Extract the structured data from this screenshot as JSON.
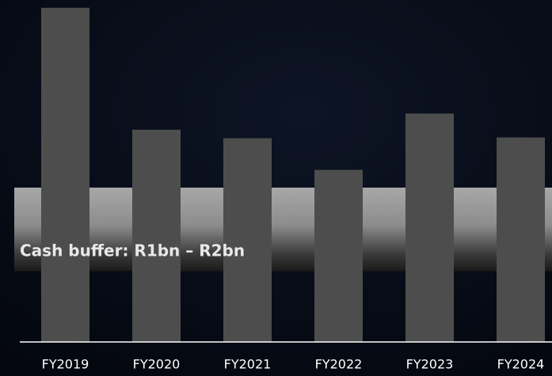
{
  "chart_data": {
    "type": "bar",
    "categories": [
      "FY2019",
      "FY2020",
      "FY2021",
      "FY2022",
      "FY2023",
      "FY2024"
    ],
    "values": [
      4.33,
      2.75,
      2.64,
      2.23,
      2.96,
      2.65
    ],
    "color": "#4d4d4d",
    "ylim": [
      0,
      4.4
    ],
    "band": {
      "from": 1,
      "to": 2,
      "label": "Cash buffer: R1bn – R2bn"
    }
  }
}
